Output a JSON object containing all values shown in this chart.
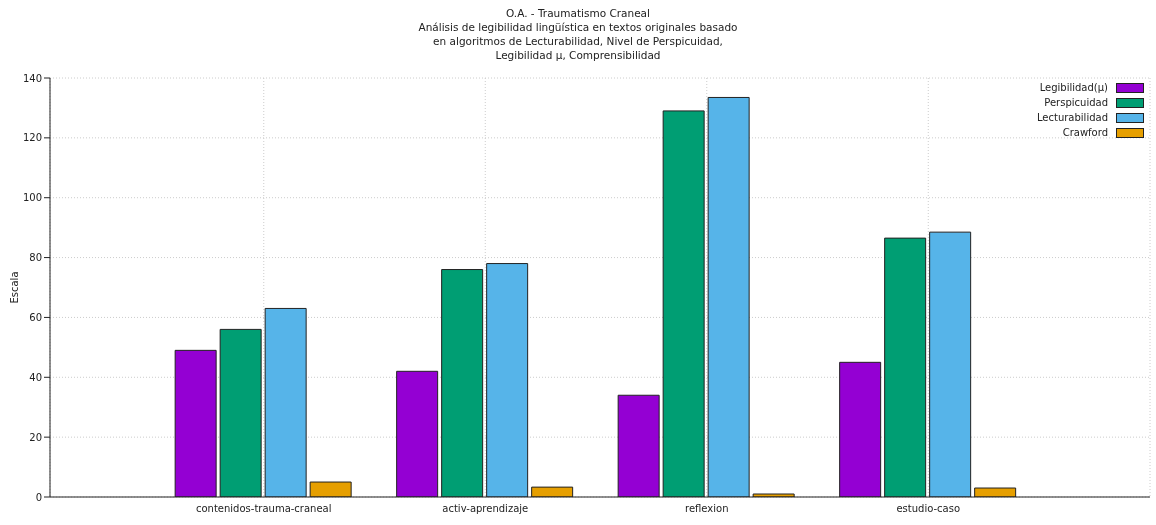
{
  "chart_data": {
    "type": "bar",
    "title": "O.A. - Traumatismo Craneal\nAnálisis de legibilidad lingüística en textos originales basado\nen algoritmos de Lecturabilidad, Nivel de Perspicuidad,\nLegibilidad μ, Comprensibilidad",
    "ylabel": "Escala",
    "categories": [
      "contenidos-trauma-craneal",
      "activ-aprendizaje",
      "reflexion",
      "estudio-caso"
    ],
    "series": [
      {
        "name": "Legibilidad(μ)",
        "color": "#9400d3",
        "values": [
          49,
          42,
          34,
          45
        ]
      },
      {
        "name": "Perspicuidad",
        "color": "#009e73",
        "values": [
          56,
          76,
          129,
          86.5
        ]
      },
      {
        "name": "Lecturabilidad",
        "color": "#56b4e9",
        "values": [
          63,
          78,
          133.5,
          88.5
        ]
      },
      {
        "name": "Crawford",
        "color": "#e69f00",
        "values": [
          5,
          3.3,
          1,
          3
        ]
      }
    ],
    "ylim": [
      0,
      140
    ],
    "yticks": [
      0,
      20,
      40,
      60,
      80,
      100,
      120,
      140
    ],
    "grid": true,
    "legend": "top right"
  }
}
